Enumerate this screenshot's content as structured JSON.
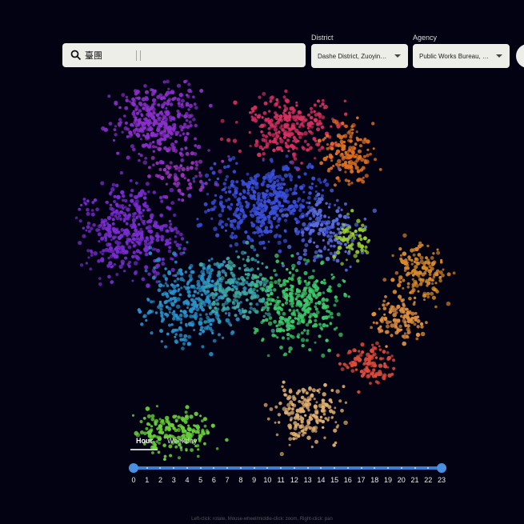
{
  "search": {
    "value": "臺團"
  },
  "filters": {
    "district": {
      "label": "District",
      "value": "Dashe District, Zuoying ..."
    },
    "agency": {
      "label": "Agency",
      "value": "Public Works Bureau, E..."
    }
  },
  "time_tabs": [
    "Hour",
    "Weekday"
  ],
  "time_slider": {
    "min": 0,
    "max": 23,
    "range": [
      0,
      23
    ],
    "ticks": [
      0,
      1,
      2,
      3,
      4,
      5,
      6,
      7,
      8,
      9,
      10,
      11,
      12,
      13,
      14,
      15,
      16,
      17,
      18,
      19,
      20,
      21,
      22,
      23
    ]
  },
  "hint": "Left-click: rotate, Mouse-wheel/middle-click: zoom, Right-click: pan"
}
